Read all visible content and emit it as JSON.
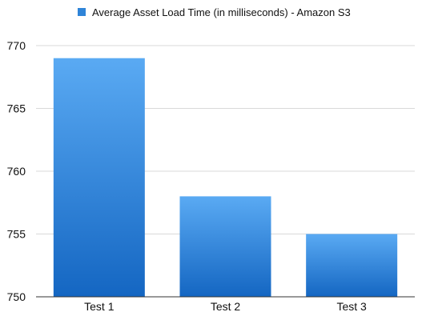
{
  "chart_data": {
    "type": "bar",
    "categories": [
      "Test 1",
      "Test 2",
      "Test 3"
    ],
    "series": [
      {
        "name": "Average Asset Load Time (in milliseconds) - Amazon S3",
        "values": [
          769,
          758,
          755
        ]
      }
    ],
    "ylim": [
      750,
      770
    ],
    "yticks": [
      750,
      755,
      760,
      765,
      770
    ],
    "grid": true,
    "legend_position": "top",
    "colors": {
      "bar_top": "#5aaaf3",
      "bar_bottom": "#1466c2",
      "legend_swatch": "#2f84d8",
      "grid": "#d9d9d9",
      "axis": "#333333"
    }
  }
}
